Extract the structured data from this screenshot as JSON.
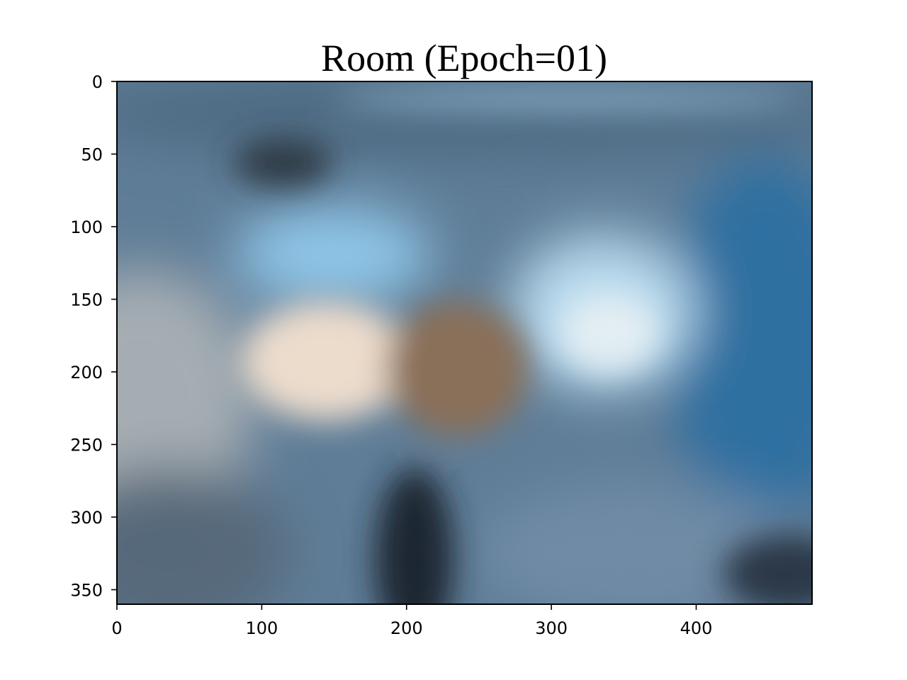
{
  "chart_data": {
    "type": "heatmap",
    "title": "Room (Epoch=01)",
    "xlabel": "",
    "ylabel": "",
    "xlim": [
      0,
      480
    ],
    "ylim": [
      360,
      0
    ],
    "x_ticks": [
      0,
      100,
      200,
      300,
      400
    ],
    "y_ticks": [
      0,
      50,
      100,
      150,
      200,
      250,
      300,
      350
    ],
    "x_tick_labels": [
      "0",
      "100",
      "200",
      "300",
      "400"
    ],
    "y_tick_labels": [
      "0",
      "50",
      "100",
      "150",
      "200",
      "250",
      "300",
      "350"
    ],
    "grid": false,
    "legend": "none",
    "image_content": "blurry reconstructed room scene",
    "colors": {
      "base": "#5f7d97",
      "blue_bright": "#8fc6e8",
      "blue_deep": "#2f6fa0",
      "warm_light": "#ecdccc",
      "brown": "#8a7058",
      "dark": "#1c2630",
      "gray": "#a9b0b6"
    }
  }
}
